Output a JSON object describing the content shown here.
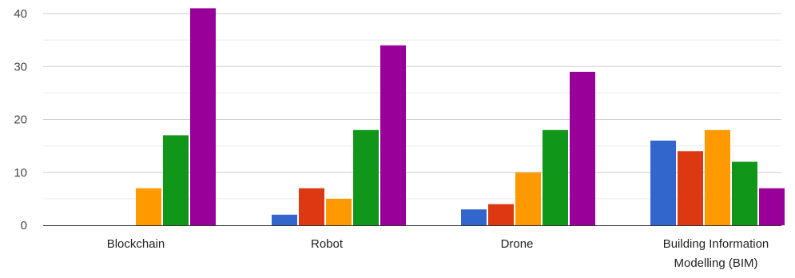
{
  "chart_data": {
    "type": "bar",
    "ylim": [
      0,
      40
    ],
    "yticks": [
      "0",
      "10",
      "20",
      "30",
      "40"
    ],
    "minor_gridlines": true,
    "series_colors": [
      "#3366cc",
      "#dc3912",
      "#ff9900",
      "#109618",
      "#990099"
    ],
    "panels": [
      {
        "category": [
          "Blockchain"
        ],
        "values": [
          0,
          0,
          7,
          17,
          41
        ]
      },
      {
        "category": [
          "Robot"
        ],
        "values": [
          2,
          7,
          5,
          18,
          34
        ]
      },
      {
        "category": [
          "Drone"
        ],
        "values": [
          3,
          4,
          10,
          18,
          29
        ]
      },
      {
        "category": [
          "Building Information",
          "Modelling (BIM)"
        ],
        "values": [
          16,
          14,
          18,
          12,
          7
        ]
      }
    ]
  }
}
